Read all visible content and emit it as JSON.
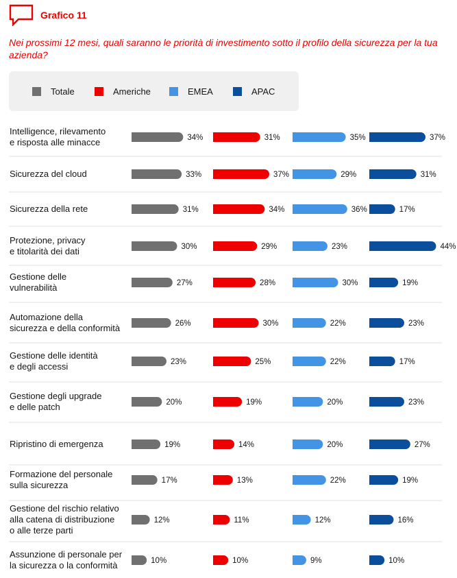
{
  "header": {
    "icon": "speech-bubble-icon",
    "figure_label": "Grafico 11"
  },
  "question": "Nei prossimi 12 mesi, quali saranno le priorità di investimento sotto il profilo della sicurezza per la tua azienda?",
  "colors": {
    "accent": "#ee0000",
    "Totale": "#707070",
    "Americhe": "#ee0000",
    "EMEA": "#4394e5",
    "APAC": "#0b4f9c",
    "divider": "#e2e2e2",
    "legend_bg": "#f0f0f0"
  },
  "legend": [
    {
      "name": "Totale",
      "color": "#707070"
    },
    {
      "name": "Americhe",
      "color": "#ee0000"
    },
    {
      "name": "EMEA",
      "color": "#4394e5"
    },
    {
      "name": "APAC",
      "color": "#0b4f9c"
    }
  ],
  "chart_data": {
    "type": "bar",
    "orientation": "horizontal",
    "value_suffix": "%",
    "categories": [
      [
        "Intelligence, rilevamento",
        "e risposta alle minacce"
      ],
      [
        "Sicurezza del cloud"
      ],
      [
        "Sicurezza della rete"
      ],
      [
        "Protezione, privacy",
        "e titolarità dei dati"
      ],
      [
        "Gestione delle",
        "vulnerabilità"
      ],
      [
        "Automazione della",
        "sicurezza e della conformità"
      ],
      [
        "Gestione delle identità",
        "e degli accessi"
      ],
      [
        "Gestione degli upgrade",
        "e delle patch"
      ],
      [
        "Ripristino di emergenza"
      ],
      [
        "Formazione del personale",
        "sulla sicurezza"
      ],
      [
        "Gestione del rischio relativo",
        "alla catena di distribuzione",
        "o alle terze parti"
      ],
      [
        "Assunzione di personale per",
        "la sicurezza o la conformità"
      ]
    ],
    "series": [
      {
        "name": "Totale",
        "values": [
          34,
          33,
          31,
          30,
          27,
          26,
          23,
          20,
          19,
          17,
          12,
          10
        ]
      },
      {
        "name": "Americhe",
        "values": [
          31,
          37,
          34,
          29,
          28,
          30,
          25,
          19,
          14,
          13,
          11,
          10
        ]
      },
      {
        "name": "EMEA",
        "values": [
          35,
          29,
          36,
          23,
          30,
          22,
          22,
          20,
          20,
          22,
          12,
          9
        ]
      },
      {
        "name": "APAC",
        "values": [
          37,
          31,
          17,
          44,
          19,
          23,
          17,
          23,
          27,
          19,
          16,
          10
        ]
      }
    ],
    "grid": false,
    "legend_position": "top"
  }
}
